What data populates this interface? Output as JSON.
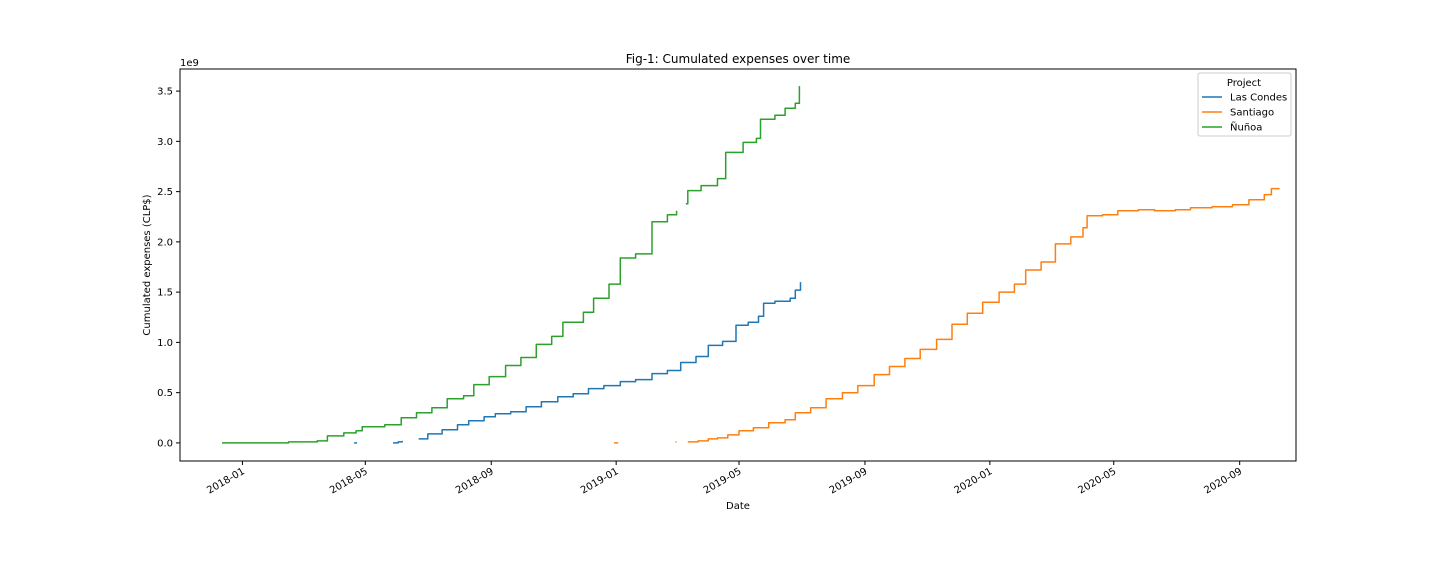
{
  "chart_data": {
    "type": "line",
    "title": "Fig-1: Cumulated expenses over time",
    "xlabel": "Date",
    "ylabel": "Cumulated expenses (CLP$)",
    "y_offset_label": "1e9",
    "xlim": [
      "2017-11-01",
      "2020-10-26"
    ],
    "ylim": [
      -0.18,
      3.72
    ],
    "y_ticks": [
      0.0,
      0.5,
      1.0,
      1.5,
      2.0,
      2.5,
      3.0,
      3.5
    ],
    "y_tick_labels": [
      "0.0",
      "0.5",
      "1.0",
      "1.5",
      "2.0",
      "2.5",
      "3.0",
      "3.5"
    ],
    "x_ticks": [
      "2018-01-01",
      "2018-05-01",
      "2018-09-01",
      "2019-01-01",
      "2019-05-01",
      "2019-09-01",
      "2020-01-01",
      "2020-05-01",
      "2020-09-01"
    ],
    "x_tick_labels": [
      "2018-01",
      "2018-05",
      "2018-09",
      "2019-01",
      "2019-05",
      "2019-09",
      "2020-01",
      "2020-05",
      "2020-09"
    ],
    "grid": false,
    "legend": {
      "title": "Project",
      "placement": "top-right"
    },
    "series": [
      {
        "name": "Las Condes",
        "color": "#1f77b4",
        "segments": [
          [
            [
              "2018-04-20",
              0.0
            ],
            [
              "2018-04-23",
              0.0
            ]
          ],
          [
            [
              "2018-05-28",
              0.0
            ],
            [
              "2018-06-02",
              0.01
            ],
            [
              "2018-06-06",
              0.02
            ]
          ],
          [
            [
              "2018-06-22",
              0.04
            ],
            [
              "2018-07-01",
              0.09
            ],
            [
              "2018-07-15",
              0.13
            ],
            [
              "2018-07-30",
              0.18
            ],
            [
              "2018-08-10",
              0.22
            ],
            [
              "2018-08-25",
              0.26
            ],
            [
              "2018-09-05",
              0.29
            ],
            [
              "2018-09-20",
              0.31
            ],
            [
              "2018-10-05",
              0.36
            ],
            [
              "2018-10-20",
              0.41
            ],
            [
              "2018-11-05",
              0.46
            ],
            [
              "2018-11-20",
              0.49
            ],
            [
              "2018-12-05",
              0.54
            ],
            [
              "2018-12-20",
              0.57
            ],
            [
              "2019-01-05",
              0.61
            ],
            [
              "2019-01-20",
              0.63
            ],
            [
              "2019-02-05",
              0.69
            ],
            [
              "2019-02-20",
              0.72
            ],
            [
              "2019-03-05",
              0.8
            ],
            [
              "2019-03-20",
              0.86
            ],
            [
              "2019-04-01",
              0.97
            ],
            [
              "2019-04-15",
              1.01
            ],
            [
              "2019-04-28",
              1.17
            ],
            [
              "2019-05-10",
              1.2
            ],
            [
              "2019-05-20",
              1.26
            ],
            [
              "2019-05-25",
              1.39
            ],
            [
              "2019-06-05",
              1.41
            ],
            [
              "2019-06-20",
              1.44
            ],
            [
              "2019-06-25",
              1.52
            ],
            [
              "2019-06-30",
              1.6
            ]
          ]
        ]
      },
      {
        "name": "Santiago",
        "color": "#ff7f0e",
        "segments": [
          [
            [
              "2018-12-30",
              0.0
            ],
            [
              "2019-01-03",
              0.0
            ]
          ],
          [
            [
              "2019-02-28",
              0.01
            ],
            [
              "2019-03-01",
              0.01
            ]
          ],
          [
            [
              "2019-03-12",
              0.01
            ],
            [
              "2019-03-22",
              0.02
            ],
            [
              "2019-04-01",
              0.04
            ],
            [
              "2019-04-10",
              0.05
            ],
            [
              "2019-04-20",
              0.08
            ],
            [
              "2019-05-01",
              0.12
            ],
            [
              "2019-05-15",
              0.15
            ],
            [
              "2019-05-30",
              0.2
            ],
            [
              "2019-06-15",
              0.23
            ],
            [
              "2019-06-25",
              0.3
            ],
            [
              "2019-07-10",
              0.35
            ],
            [
              "2019-07-25",
              0.44
            ],
            [
              "2019-08-10",
              0.5
            ],
            [
              "2019-08-25",
              0.57
            ],
            [
              "2019-09-10",
              0.68
            ],
            [
              "2019-09-25",
              0.76
            ],
            [
              "2019-10-10",
              0.84
            ],
            [
              "2019-10-25",
              0.93
            ],
            [
              "2019-11-10",
              1.03
            ],
            [
              "2019-11-25",
              1.18
            ],
            [
              "2019-12-10",
              1.29
            ],
            [
              "2019-12-25",
              1.4
            ],
            [
              "2020-01-10",
              1.5
            ],
            [
              "2020-01-25",
              1.58
            ],
            [
              "2020-02-05",
              1.72
            ],
            [
              "2020-02-20",
              1.8
            ],
            [
              "2020-03-05",
              1.98
            ],
            [
              "2020-03-20",
              2.05
            ],
            [
              "2020-04-01",
              2.14
            ],
            [
              "2020-04-05",
              2.26
            ],
            [
              "2020-04-20",
              2.27
            ],
            [
              "2020-05-05",
              2.31
            ],
            [
              "2020-05-25",
              2.32
            ],
            [
              "2020-06-10",
              2.31
            ],
            [
              "2020-06-30",
              2.32
            ],
            [
              "2020-07-15",
              2.34
            ],
            [
              "2020-08-05",
              2.35
            ],
            [
              "2020-08-25",
              2.37
            ],
            [
              "2020-09-10",
              2.42
            ],
            [
              "2020-09-25",
              2.47
            ],
            [
              "2020-10-02",
              2.53
            ],
            [
              "2020-10-10",
              2.53
            ]
          ]
        ]
      },
      {
        "name": "Ñuñoa",
        "color": "#2ca02c",
        "segments": [
          [
            [
              "2017-12-12",
              0.0
            ],
            [
              "2018-01-15",
              0.0
            ],
            [
              "2018-02-15",
              0.01
            ],
            [
              "2018-03-15",
              0.02
            ],
            [
              "2018-03-25",
              0.07
            ],
            [
              "2018-04-10",
              0.1
            ],
            [
              "2018-04-22",
              0.12
            ],
            [
              "2018-04-28",
              0.16
            ],
            [
              "2018-05-20",
              0.18
            ],
            [
              "2018-06-05",
              0.25
            ],
            [
              "2018-06-20",
              0.3
            ],
            [
              "2018-07-05",
              0.35
            ],
            [
              "2018-07-20",
              0.44
            ],
            [
              "2018-08-05",
              0.47
            ],
            [
              "2018-08-15",
              0.58
            ],
            [
              "2018-08-30",
              0.66
            ],
            [
              "2018-09-15",
              0.77
            ],
            [
              "2018-09-30",
              0.85
            ],
            [
              "2018-10-15",
              0.98
            ],
            [
              "2018-10-30",
              1.06
            ],
            [
              "2018-11-10",
              1.2
            ],
            [
              "2018-11-30",
              1.3
            ],
            [
              "2018-12-10",
              1.44
            ],
            [
              "2018-12-25",
              1.58
            ],
            [
              "2019-01-05",
              1.84
            ],
            [
              "2019-01-20",
              1.88
            ],
            [
              "2019-02-05",
              2.2
            ],
            [
              "2019-02-20",
              2.27
            ],
            [
              "2019-03-01",
              2.31
            ]
          ],
          [
            [
              "2019-03-10",
              2.38
            ],
            [
              "2019-03-12",
              2.51
            ],
            [
              "2019-03-25",
              2.56
            ],
            [
              "2019-04-10",
              2.63
            ],
            [
              "2019-04-18",
              2.89
            ],
            [
              "2019-05-05",
              2.99
            ],
            [
              "2019-05-18",
              3.03
            ],
            [
              "2019-05-22",
              3.22
            ],
            [
              "2019-06-05",
              3.26
            ],
            [
              "2019-06-15",
              3.33
            ],
            [
              "2019-06-25",
              3.38
            ],
            [
              "2019-06-29",
              3.55
            ]
          ]
        ]
      }
    ]
  }
}
